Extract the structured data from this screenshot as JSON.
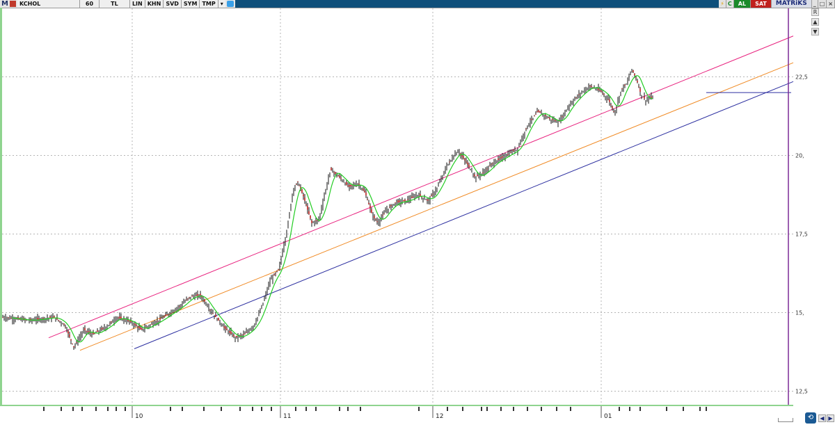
{
  "toolbar": {
    "app_mark": "M",
    "symbol": "KCHOL",
    "period": "60",
    "currency": "TL",
    "buttons": [
      "LIN",
      "KHN",
      "SVD",
      "SYM",
      "TMP"
    ],
    "dropdown_glyph": "▾",
    "bolt_glyph": "⚡",
    "c_label": "C",
    "buy_label": "AL",
    "sell_label": "SAT",
    "brand": "MATRiKS",
    "win_buttons": [
      "_",
      "□",
      "×"
    ]
  },
  "side": {
    "up_glyph": "▲",
    "down_glyph": "▼",
    "r_label": "R"
  },
  "nav": {
    "main_glyph": "⟲",
    "left_glyph": "◀",
    "right_glyph": "▶"
  },
  "colors": {
    "candle": "#111111",
    "ma": "#22cc22",
    "channel_top": "#e8217e",
    "channel_mid": "#f08a24",
    "channel_bottom": "#2c2fa0",
    "support": "#2c2fa0",
    "divider": "#7b2a96",
    "grid": "#b4b4b4"
  },
  "chart_data": {
    "type": "candlestick",
    "symbol": "KCHOL",
    "interval": "60",
    "ylim": [
      12.0,
      24.3
    ],
    "y_ticks": [
      12.5,
      15,
      17.5,
      20,
      22.5
    ],
    "y_tick_labels": [
      "12,5",
      "15,",
      "17,5",
      "20,",
      "22,5"
    ],
    "x_labels": [
      "10",
      "11",
      "12",
      "01"
    ],
    "grid": true,
    "approx_close_path": [
      [
        0,
        14.85
      ],
      [
        40,
        14.75
      ],
      [
        75,
        14.85
      ],
      [
        90,
        14.6
      ],
      [
        103,
        13.9
      ],
      [
        118,
        14.45
      ],
      [
        130,
        14.3
      ],
      [
        150,
        14.55
      ],
      [
        165,
        14.85
      ],
      [
        185,
        14.7
      ],
      [
        200,
        14.45
      ],
      [
        225,
        14.75
      ],
      [
        255,
        15.2
      ],
      [
        270,
        15.5
      ],
      [
        285,
        15.55
      ],
      [
        300,
        15.05
      ],
      [
        320,
        14.5
      ],
      [
        335,
        14.2
      ],
      [
        348,
        14.3
      ],
      [
        362,
        14.6
      ],
      [
        372,
        15.1
      ],
      [
        385,
        16.0
      ],
      [
        398,
        16.4
      ],
      [
        410,
        17.7
      ],
      [
        418,
        18.9
      ],
      [
        425,
        19.15
      ],
      [
        433,
        18.7
      ],
      [
        445,
        17.85
      ],
      [
        455,
        17.95
      ],
      [
        465,
        18.9
      ],
      [
        472,
        19.55
      ],
      [
        485,
        19.3
      ],
      [
        498,
        19.0
      ],
      [
        512,
        19.1
      ],
      [
        522,
        18.8
      ],
      [
        532,
        18.1
      ],
      [
        540,
        17.85
      ],
      [
        552,
        18.25
      ],
      [
        565,
        18.5
      ],
      [
        580,
        18.55
      ],
      [
        598,
        18.75
      ],
      [
        612,
        18.55
      ],
      [
        625,
        18.95
      ],
      [
        640,
        19.7
      ],
      [
        655,
        20.15
      ],
      [
        668,
        19.75
      ],
      [
        680,
        19.3
      ],
      [
        692,
        19.45
      ],
      [
        705,
        19.75
      ],
      [
        720,
        19.95
      ],
      [
        740,
        20.2
      ],
      [
        755,
        20.95
      ],
      [
        770,
        21.4
      ],
      [
        788,
        21.15
      ],
      [
        800,
        21.05
      ],
      [
        815,
        21.6
      ],
      [
        832,
        22.0
      ],
      [
        845,
        22.2
      ],
      [
        860,
        22.05
      ],
      [
        872,
        21.75
      ],
      [
        880,
        21.35
      ],
      [
        890,
        22.1
      ],
      [
        898,
        22.3
      ],
      [
        905,
        22.75
      ],
      [
        912,
        22.4
      ],
      [
        918,
        21.95
      ],
      [
        925,
        21.75
      ],
      [
        935,
        21.85
      ]
    ],
    "channel": {
      "top": [
        [
          70,
          14.2
        ],
        [
          1140,
          23.8
        ]
      ],
      "middle": [
        [
          115,
          13.8
        ],
        [
          1140,
          22.95
        ]
      ],
      "bottom": [
        [
          193,
          13.85
        ],
        [
          1140,
          22.35
        ]
      ]
    },
    "support": {
      "value": 22.0,
      "from_x": 1015,
      "to_x": 1137
    },
    "vertical_line_x": 1133,
    "ma_period": "approx"
  }
}
